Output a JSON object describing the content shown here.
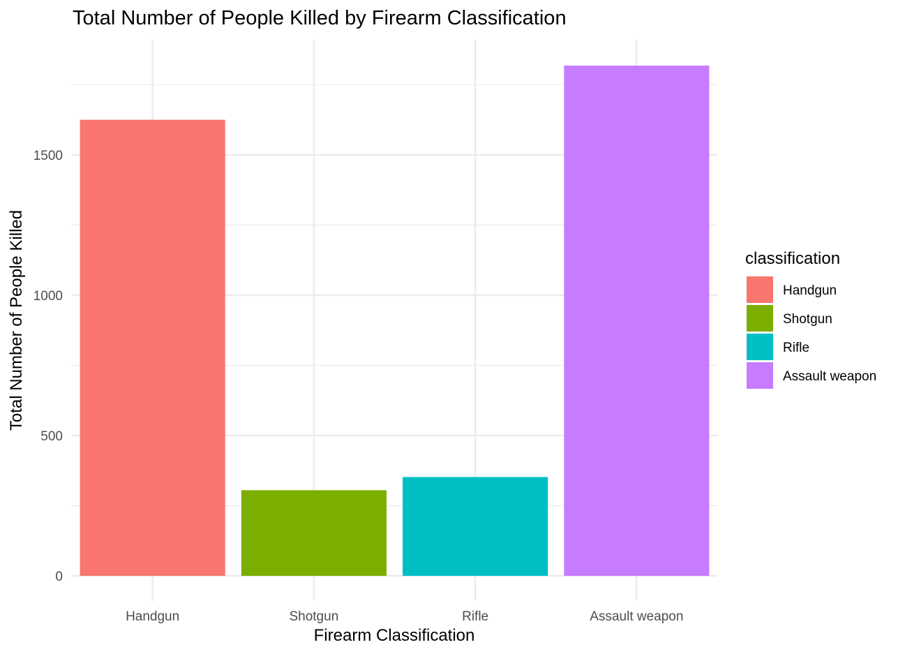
{
  "chart_data": {
    "type": "bar",
    "title": "Total Number of People Killed by Firearm Classification",
    "xlabel": "Firearm Classification",
    "ylabel": "Total Number of People Killed",
    "categories": [
      "Handgun",
      "Shotgun",
      "Rifle",
      "Assault weapon"
    ],
    "values": [
      1625,
      305,
      352,
      1818
    ],
    "colors": [
      "#F8766D",
      "#7CAE00",
      "#00BFC4",
      "#C77CFF"
    ],
    "ylim": [
      0,
      1910
    ],
    "yticks": [
      0,
      500,
      1000,
      1500
    ],
    "grid": true,
    "legend": {
      "title": "classification",
      "position": "right",
      "entries": [
        "Handgun",
        "Shotgun",
        "Rifle",
        "Assault weapon"
      ]
    }
  }
}
